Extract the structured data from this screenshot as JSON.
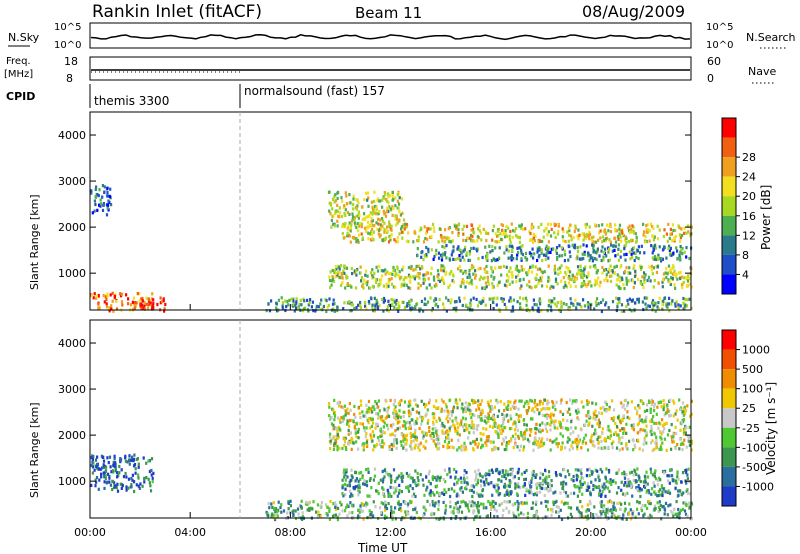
{
  "header": {
    "title": "Rankin Inlet (fitACF)",
    "beam": "Beam 11",
    "date": "08/Aug/2009"
  },
  "strips": {
    "nsky_label": "N.Sky",
    "nsky_ticks": [
      "10^5",
      "10^0"
    ],
    "nsearch_label": "N.Search",
    "nsearch_ticks": [
      "10^5",
      "10^0"
    ],
    "freq_label": "Freq.",
    "freq_unit": "[MHz]",
    "freq_ticks": [
      "18",
      "8"
    ],
    "nave_label": "Nave",
    "nave_ticks": [
      "60",
      "0"
    ],
    "cpid_label": "CPID",
    "cpid_segments": [
      {
        "label": "themis 3300",
        "start_hour": 0
      },
      {
        "label": "normalsound (fast) 157",
        "start_hour": 6
      }
    ]
  },
  "chart_data": [
    {
      "type": "heatmap",
      "name": "power",
      "ylabel": "Slant Range [km]",
      "xlabel": "Time UT",
      "xlim_hours": [
        0,
        24
      ],
      "ylim_km": [
        200,
        4500
      ],
      "x_ticks": [
        "00:00",
        "04:00",
        "08:00",
        "12:00",
        "16:00",
        "20:00",
        "00:00"
      ],
      "y_ticks": [
        1000,
        2000,
        3000,
        4000
      ],
      "colorbar": {
        "label": "Power [dB]",
        "ticks": [
          "4",
          "8",
          "12",
          "16",
          "20",
          "24",
          "28"
        ],
        "colors": [
          "#0000ff",
          "#1e4fc8",
          "#2a7a8c",
          "#4caf50",
          "#a8d820",
          "#f2e020",
          "#f0a020",
          "#f06010",
          "#ff0000"
        ]
      },
      "regions": [
        {
          "t0": 0.0,
          "t1": 0.8,
          "r0": 2300,
          "r1": 3000,
          "level": 0.2
        },
        {
          "t0": 0.0,
          "t1": 2.5,
          "r0": 200,
          "r1": 600,
          "level": 0.8
        },
        {
          "t0": 2.0,
          "t1": 3.0,
          "r0": 200,
          "r1": 500,
          "level": 0.95
        },
        {
          "t0": 9.5,
          "t1": 12.5,
          "r0": 2000,
          "r1": 2800,
          "level": 0.55
        },
        {
          "t0": 10.0,
          "t1": 24.0,
          "r0": 1700,
          "r1": 2100,
          "level": 0.6
        },
        {
          "t0": 13.0,
          "t1": 24.0,
          "r0": 1300,
          "r1": 1650,
          "level": 0.3
        },
        {
          "t0": 9.5,
          "t1": 24.0,
          "r0": 700,
          "r1": 1200,
          "level": 0.5
        },
        {
          "t0": 7.0,
          "t1": 24.0,
          "r0": 200,
          "r1": 500,
          "level": 0.35
        }
      ]
    },
    {
      "type": "heatmap",
      "name": "velocity",
      "ylabel": "Slant Range [km]",
      "xlabel": "Time UT",
      "xlim_hours": [
        0,
        24
      ],
      "ylim_km": [
        200,
        4500
      ],
      "x_ticks": [
        "00:00",
        "04:00",
        "08:00",
        "12:00",
        "16:00",
        "20:00",
        "00:00"
      ],
      "y_ticks": [
        1000,
        2000,
        3000,
        4000
      ],
      "colorbar": {
        "label": "Velocity [m s⁻¹]",
        "ticks": [
          "1000",
          "500",
          "100",
          "25",
          "-25",
          "-100",
          "-500",
          "-1000"
        ],
        "colors": [
          "#1e3cc8",
          "#2a6ea0",
          "#3c9650",
          "#50c832",
          "#c8c8c8",
          "#f0c800",
          "#f08c00",
          "#f05000",
          "#ff0000"
        ]
      },
      "regions": [
        {
          "t0": 0.0,
          "t1": 2.5,
          "r0": 800,
          "r1": 1600,
          "level": 0.15
        },
        {
          "t0": 9.5,
          "t1": 24.0,
          "r0": 1700,
          "r1": 2800,
          "level": 0.5
        },
        {
          "t0": 10.0,
          "t1": 24.0,
          "r0": 700,
          "r1": 1300,
          "level": 0.3
        },
        {
          "t0": 7.0,
          "t1": 24.0,
          "r0": 200,
          "r1": 600,
          "level": 0.35
        }
      ]
    }
  ]
}
